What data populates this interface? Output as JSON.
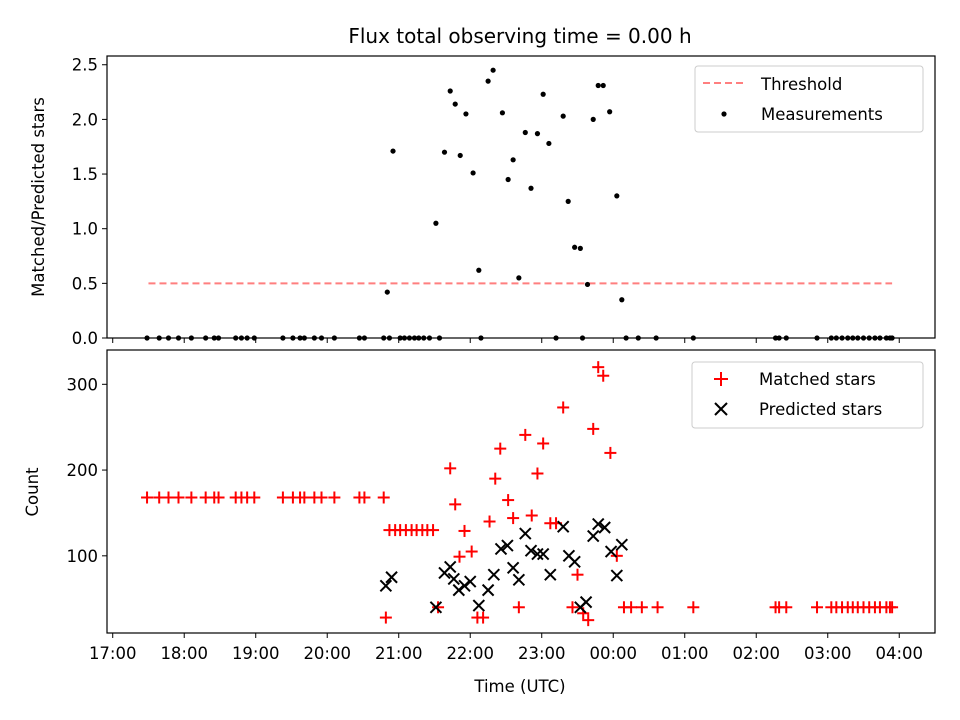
{
  "chart_data": [
    {
      "type": "scatter",
      "title": "Flux total observing time = 0.00 h",
      "ylabel": "Matched/Predicted stars",
      "xlabel": "",
      "xlim": [
        16.92,
        28.5
      ],
      "ylim": [
        0,
        2.58
      ],
      "yticks": [
        0.0,
        0.5,
        1.0,
        1.5,
        2.0,
        2.5
      ],
      "ytick_labels": [
        "0.0",
        "0.5",
        "1.0",
        "1.5",
        "2.0",
        "2.5"
      ],
      "legend_position": "top-right",
      "series": [
        {
          "name": "Threshold",
          "kind": "dashed-line",
          "color": "#ff7f7f",
          "x": [
            17.5,
            27.9
          ],
          "y": [
            0.5,
            0.5
          ]
        },
        {
          "name": "Measurements",
          "kind": "dot",
          "color": "#000000",
          "x": [
            17.48,
            17.65,
            17.78,
            17.92,
            18.1,
            18.3,
            18.42,
            18.48,
            18.72,
            18.8,
            18.88,
            18.98,
            19.38,
            19.52,
            19.62,
            19.68,
            19.82,
            19.92,
            20.1,
            20.45,
            20.52,
            20.79,
            20.84,
            20.87,
            20.92,
            21.02,
            21.08,
            21.15,
            21.22,
            21.28,
            21.35,
            21.43,
            21.52,
            21.57,
            21.64,
            21.72,
            21.79,
            21.86,
            21.94,
            22.04,
            22.12,
            22.15,
            22.25,
            22.32,
            22.45,
            22.53,
            22.6,
            22.68,
            22.77,
            22.85,
            22.94,
            23.02,
            23.1,
            23.2,
            23.3,
            23.37,
            23.46,
            23.54,
            23.57,
            23.64,
            23.72,
            23.79,
            23.86,
            23.95,
            24.05,
            24.12,
            24.18,
            24.35,
            24.6,
            25.12,
            26.27,
            26.32,
            26.42,
            26.85,
            27.05,
            27.12,
            27.2,
            27.28,
            27.35,
            27.42,
            27.5,
            27.58,
            27.66,
            27.73,
            27.82,
            27.87,
            27.9
          ],
          "y": [
            0.0,
            0.0,
            0.0,
            0.0,
            0.0,
            0.0,
            0.0,
            0.0,
            0.0,
            0.0,
            0.0,
            0.0,
            0.0,
            0.0,
            0.0,
            0.0,
            0.0,
            0.0,
            0.0,
            0.0,
            0.0,
            0.0,
            0.42,
            0.0,
            1.71,
            0.0,
            0.0,
            0.0,
            0.0,
            0.0,
            0.0,
            0.0,
            1.05,
            0.0,
            1.7,
            2.26,
            2.14,
            1.67,
            2.05,
            1.51,
            0.62,
            0.0,
            2.35,
            2.45,
            2.06,
            1.45,
            1.63,
            0.55,
            1.88,
            1.37,
            1.87,
            2.23,
            1.78,
            0.0,
            2.03,
            1.25,
            0.83,
            0.82,
            0.0,
            0.49,
            2.0,
            2.31,
            2.31,
            2.07,
            1.3,
            0.35,
            0.0,
            0.0,
            0.0,
            0.0,
            0.0,
            0.0,
            0.0,
            0.0,
            0.0,
            0.0,
            0.0,
            0.0,
            0.0,
            0.0,
            0.0,
            0.0,
            0.0,
            0.0,
            0.0,
            0.0,
            0.0
          ]
        }
      ]
    },
    {
      "type": "scatter",
      "title": "",
      "xlabel": "Time (UTC)",
      "ylabel": "Count",
      "xlim": [
        16.92,
        28.5
      ],
      "ylim": [
        10,
        340
      ],
      "yticks": [
        100,
        200,
        300
      ],
      "ytick_labels": [
        "100",
        "200",
        "300"
      ],
      "xticks": [
        17,
        18,
        19,
        20,
        21,
        22,
        23,
        24,
        25,
        26,
        27,
        28
      ],
      "xtick_labels": [
        "17:00",
        "18:00",
        "19:00",
        "20:00",
        "21:00",
        "22:00",
        "23:00",
        "00:00",
        "01:00",
        "02:00",
        "03:00",
        "04:00"
      ],
      "legend_position": "top-right",
      "series": [
        {
          "name": "Matched stars",
          "marker": "plus",
          "color": "#ff0000",
          "x": [
            17.48,
            17.65,
            17.78,
            17.92,
            18.1,
            18.3,
            18.42,
            18.48,
            18.72,
            18.8,
            18.88,
            18.98,
            19.38,
            19.52,
            19.62,
            19.68,
            19.82,
            19.92,
            20.1,
            20.45,
            20.52,
            20.79,
            20.82,
            20.87,
            20.95,
            21.02,
            21.1,
            21.18,
            21.25,
            21.33,
            21.4,
            21.48,
            21.55,
            21.72,
            21.79,
            21.85,
            21.92,
            22.02,
            22.1,
            22.18,
            22.27,
            22.35,
            22.42,
            22.53,
            22.6,
            22.68,
            22.77,
            22.86,
            22.94,
            23.02,
            23.12,
            23.2,
            23.3,
            23.43,
            23.5,
            23.58,
            23.65,
            23.72,
            23.79,
            23.86,
            23.96,
            24.05,
            24.15,
            24.25,
            24.4,
            24.62,
            25.12,
            26.27,
            26.32,
            26.42,
            26.85,
            27.05,
            27.12,
            27.2,
            27.28,
            27.35,
            27.42,
            27.5,
            27.58,
            27.66,
            27.73,
            27.82,
            27.87,
            27.9
          ],
          "y": [
            168,
            168,
            168,
            168,
            168,
            168,
            168,
            168,
            168,
            168,
            168,
            168,
            168,
            168,
            168,
            168,
            168,
            168,
            168,
            168,
            168,
            168,
            28,
            130,
            130,
            130,
            130,
            130,
            130,
            130,
            130,
            130,
            40,
            202,
            160,
            99,
            129,
            105,
            28,
            28,
            140,
            190,
            225,
            165,
            144,
            40,
            241,
            147,
            196,
            231,
            138,
            138,
            273,
            40,
            78,
            33,
            25,
            248,
            320,
            310,
            220,
            100,
            40,
            40,
            40,
            40,
            40,
            40,
            40,
            40,
            40,
            40,
            40,
            40,
            40,
            40,
            40,
            40,
            40,
            40,
            40,
            40,
            40,
            40
          ]
        },
        {
          "name": "Predicted stars",
          "marker": "x",
          "color": "#000000",
          "x": [
            20.82,
            20.9,
            21.52,
            21.64,
            21.72,
            21.77,
            21.84,
            21.92,
            22.0,
            22.12,
            22.25,
            22.33,
            22.43,
            22.52,
            22.6,
            22.68,
            22.77,
            22.85,
            22.94,
            23.02,
            23.12,
            23.3,
            23.38,
            23.46,
            23.54,
            23.62,
            23.72,
            23.79,
            23.88,
            23.97,
            24.05,
            24.12
          ],
          "y": [
            65,
            75,
            40,
            80,
            87,
            73,
            60,
            65,
            70,
            42,
            60,
            78,
            108,
            112,
            86,
            72,
            126,
            106,
            102,
            102,
            78,
            134,
            100,
            93,
            40,
            46,
            123,
            137,
            133,
            105,
            77,
            113
          ]
        }
      ]
    }
  ]
}
